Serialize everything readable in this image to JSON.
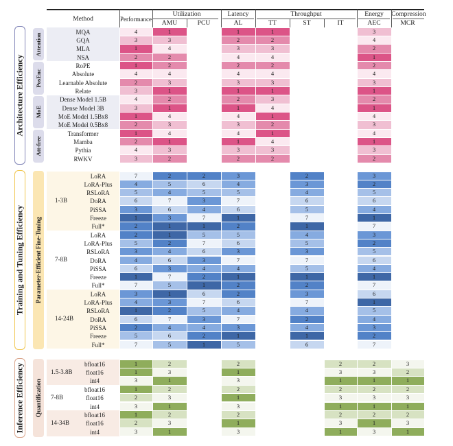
{
  "header": {
    "method": "Method",
    "performance": "Performance",
    "groups": [
      {
        "label": "Utilization",
        "cols": [
          "AMU",
          "PCU"
        ]
      },
      {
        "label": "Latency",
        "cols": [
          "AL"
        ]
      },
      {
        "label": "Throughput",
        "cols": [
          "TT",
          "ST",
          "IT"
        ]
      },
      {
        "label": "Energy",
        "cols": [
          "AEC"
        ]
      },
      {
        "label": "Compression",
        "cols": [
          "MCR"
        ]
      }
    ],
    "columns": [
      "Performance",
      "AMU",
      "PCU",
      "AL",
      "TT",
      "ST",
      "IT",
      "AEC",
      "MCR"
    ]
  },
  "colors": {
    "architecture": {
      "1": "#dc5487",
      "2": "#e48aac",
      "3": "#f0bfd2",
      "4": "#fbe9f0",
      "row_bg": "#ecedf4",
      "group_bg": "#dcdceb",
      "border": "#8286b8"
    },
    "training": {
      "1": "#3e67a6",
      "2": "#5282c7",
      "3": "#6b97d6",
      "4": "#86abe0",
      "5": "#a5c0e8",
      "6": "#c6d7f0",
      "7": "#eef3fa",
      "row_bg": "#fdf6e6",
      "group_bg": "#fbe6b3",
      "border": "#f0c54d"
    },
    "inference": {
      "1": "#8fad5c",
      "2": "#d7e2c2",
      "3": "#f4f6ee",
      "row_bg": "#f8ebe4",
      "group_bg": "#f5e3da",
      "border": "#d9a48a"
    }
  },
  "sections": [
    {
      "title": "Architecture Efficiency",
      "palette": "architecture",
      "columns": [
        "Performance",
        "AMU",
        "AL",
        "TT",
        "AEC"
      ],
      "groups": [
        {
          "label": "Attention",
          "rows": [
            {
              "method": "MQA",
              "values": [
                4,
                1,
                1,
                1,
                3
              ]
            },
            {
              "method": "GQA",
              "values": [
                3,
                3,
                2,
                2,
                4
              ]
            },
            {
              "method": "MLA",
              "values": [
                1,
                4,
                3,
                3,
                2
              ]
            },
            {
              "method": "NSA",
              "values": [
                2,
                2,
                4,
                4,
                1
              ]
            }
          ]
        },
        {
          "label": "PosEnc",
          "rows": [
            {
              "method": "RoPE",
              "values": [
                1,
                2,
                2,
                2,
                2
              ]
            },
            {
              "method": "Absolute",
              "values": [
                4,
                4,
                4,
                4,
                4
              ]
            },
            {
              "method": "Learnable Absolute",
              "values": [
                2,
                3,
                3,
                3,
                3
              ]
            },
            {
              "method": "Relate",
              "values": [
                3,
                1,
                1,
                1,
                1
              ]
            }
          ]
        },
        {
          "label": "MoE",
          "rows": [
            {
              "method": "Dense Model 1.5B",
              "values": [
                4,
                2,
                2,
                3,
                2
              ]
            },
            {
              "method": "Dense Model 3B",
              "values": [
                3,
                1,
                1,
                4,
                1
              ]
            },
            {
              "method": "MoE Model 1.5Bx8",
              "values": [
                1,
                4,
                4,
                1,
                4
              ]
            },
            {
              "method": "MoE Model 0.5Bx8",
              "values": [
                2,
                3,
                3,
                2,
                3
              ]
            }
          ]
        },
        {
          "label": "Att-free",
          "rows": [
            {
              "method": "Transformer",
              "values": [
                1,
                4,
                4,
                1,
                4
              ]
            },
            {
              "method": "Mamba",
              "values": [
                2,
                1,
                1,
                4,
                1
              ]
            },
            {
              "method": "Pythia",
              "values": [
                4,
                3,
                3,
                3,
                3
              ]
            },
            {
              "method": "RWKV",
              "values": [
                3,
                2,
                2,
                2,
                2
              ]
            }
          ]
        }
      ]
    },
    {
      "title": "Training and Tuning Efficiency",
      "subtitle": "Parameter-Efficient Fine-Tuning",
      "palette": "training",
      "columns": [
        "Performance",
        "AMU",
        "PCU",
        "AL",
        "ST",
        "AEC"
      ],
      "groups": [
        {
          "label": "1-3B",
          "rows": [
            {
              "method": "LoRA",
              "values": [
                7,
                2,
                2,
                3,
                2,
                3
              ]
            },
            {
              "method": "LoRA-Plus",
              "values": [
                4,
                5,
                6,
                4,
                3,
                2
              ]
            },
            {
              "method": "RSLoRA",
              "values": [
                5,
                4,
                5,
                5,
                4,
                5
              ]
            },
            {
              "method": "DoRA",
              "values": [
                6,
                7,
                3,
                7,
                6,
                6
              ]
            },
            {
              "method": "PiSSA",
              "values": [
                3,
                6,
                4,
                6,
                5,
                4
              ]
            },
            {
              "method": "Freeze",
              "values": [
                1,
                3,
                7,
                1,
                7,
                1
              ]
            },
            {
              "method": "Full*",
              "values": [
                2,
                1,
                1,
                2,
                1,
                7
              ]
            }
          ]
        },
        {
          "label": "7-8B",
          "rows": [
            {
              "method": "LoRA",
              "values": [
                2,
                1,
                5,
                5,
                4,
                3
              ]
            },
            {
              "method": "LoRA-Plus",
              "values": [
                5,
                2,
                7,
                6,
                5,
                2
              ]
            },
            {
              "method": "RSLoRA",
              "values": [
                3,
                4,
                6,
                3,
                3,
                5
              ]
            },
            {
              "method": "DoRA",
              "values": [
                4,
                6,
                3,
                7,
                7,
                6
              ]
            },
            {
              "method": "PiSSA",
              "values": [
                6,
                3,
                4,
                4,
                5,
                4
              ]
            },
            {
              "method": "Freeze",
              "values": [
                1,
                7,
                2,
                1,
                1,
                1
              ]
            },
            {
              "method": "Full*",
              "values": [
                7,
                5,
                1,
                2,
                2,
                7
              ]
            }
          ]
        },
        {
          "label": "14-24B",
          "rows": [
            {
              "method": "LoRA",
              "values": [
                3,
                1,
                6,
                2,
                3,
                6
              ]
            },
            {
              "method": "LoRA-Plus",
              "values": [
                4,
                3,
                7,
                6,
                7,
                1
              ]
            },
            {
              "method": "RSLoRA",
              "values": [
                1,
                2,
                5,
                4,
                4,
                5
              ]
            },
            {
              "method": "DoRA",
              "values": [
                6,
                7,
                3,
                7,
                2,
                4
              ]
            },
            {
              "method": "PiSSA",
              "values": [
                2,
                4,
                4,
                3,
                4,
                3
              ]
            },
            {
              "method": "Freeze",
              "values": [
                5,
                6,
                2,
                1,
                1,
                2
              ]
            },
            {
              "method": "Full*",
              "values": [
                7,
                5,
                1,
                5,
                6,
                7
              ]
            }
          ]
        }
      ]
    },
    {
      "title": "Inference Efficiency",
      "subtitle": "Quantification",
      "palette": "inference",
      "columns": [
        "Performance",
        "AMU",
        "AL",
        "IT",
        "AEC",
        "MCR"
      ],
      "groups": [
        {
          "label": "1.5-3.8B",
          "rows": [
            {
              "method": "bfloat16",
              "values": [
                1,
                2,
                2,
                2,
                2,
                3
              ]
            },
            {
              "method": "float16",
              "values": [
                1,
                3,
                1,
                3,
                3,
                2
              ]
            },
            {
              "method": "int4",
              "values": [
                3,
                1,
                3,
                1,
                1,
                1
              ]
            }
          ]
        },
        {
          "label": "7-8B",
          "rows": [
            {
              "method": "bfloat16",
              "values": [
                1,
                2,
                2,
                2,
                2,
                2
              ]
            },
            {
              "method": "float16",
              "values": [
                2,
                3,
                1,
                3,
                3,
                3
              ]
            },
            {
              "method": "int4",
              "values": [
                3,
                1,
                3,
                1,
                1,
                1
              ]
            }
          ]
        },
        {
          "label": "14-34B",
          "rows": [
            {
              "method": "bfloat16",
              "values": [
                1,
                2,
                2,
                2,
                2,
                2
              ]
            },
            {
              "method": "float16",
              "values": [
                2,
                3,
                1,
                3,
                1,
                3
              ]
            },
            {
              "method": "int4",
              "values": [
                3,
                1,
                3,
                1,
                3,
                1
              ]
            }
          ]
        }
      ]
    }
  ]
}
